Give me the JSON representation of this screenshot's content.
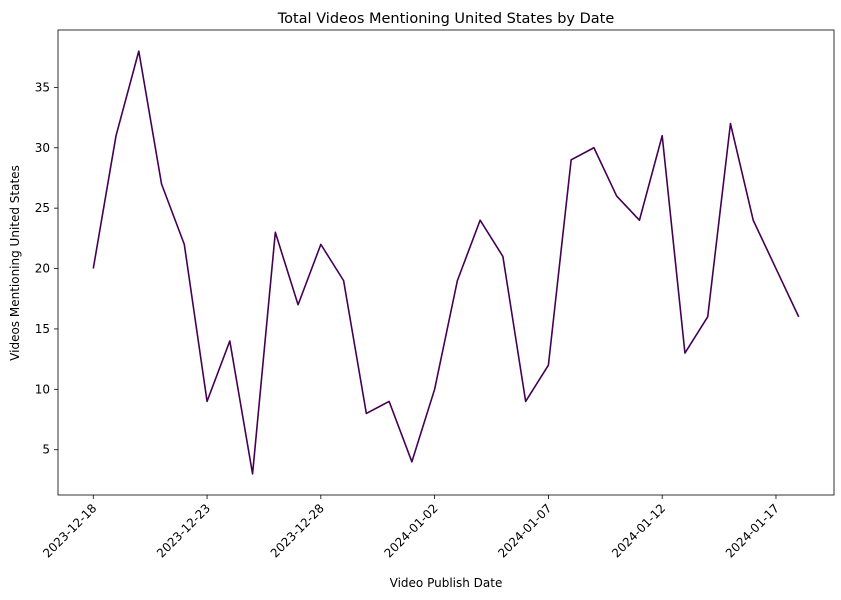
{
  "chart_data": {
    "type": "line",
    "title": "Total Videos Mentioning United States by Date",
    "xlabel": "Video Publish Date",
    "ylabel": "Videos Mentioning United States",
    "x": [
      "2023-12-18",
      "2023-12-19",
      "2023-12-20",
      "2023-12-21",
      "2023-12-22",
      "2023-12-23",
      "2023-12-24",
      "2023-12-25",
      "2023-12-26",
      "2023-12-27",
      "2023-12-28",
      "2023-12-29",
      "2023-12-30",
      "2023-12-31",
      "2024-01-01",
      "2024-01-02",
      "2024-01-03",
      "2024-01-04",
      "2024-01-05",
      "2024-01-06",
      "2024-01-07",
      "2024-01-08",
      "2024-01-09",
      "2024-01-10",
      "2024-01-11",
      "2024-01-12",
      "2024-01-13",
      "2024-01-14",
      "2024-01-15",
      "2024-01-16",
      "2024-01-17",
      "2024-01-18"
    ],
    "series": [
      {
        "values": [
          20,
          31,
          38,
          27,
          22,
          9,
          14,
          3,
          23,
          17,
          22,
          19,
          8,
          9,
          4,
          10,
          19,
          24,
          21,
          9,
          12,
          29,
          30,
          26,
          24,
          31,
          13,
          16,
          32,
          24,
          20,
          16
        ],
        "color": "#440154"
      }
    ],
    "xticks": [
      "2023-12-18",
      "2023-12-23",
      "2023-12-28",
      "2024-01-02",
      "2024-01-07",
      "2024-01-12",
      "2024-01-17"
    ],
    "yticks": [
      5,
      10,
      15,
      20,
      25,
      30,
      35
    ],
    "xlim": [
      "2023-12-16.45",
      "2024-01-19.55"
    ],
    "ylim": [
      1.25,
      39.75
    ],
    "grid": false,
    "legend": "none"
  }
}
